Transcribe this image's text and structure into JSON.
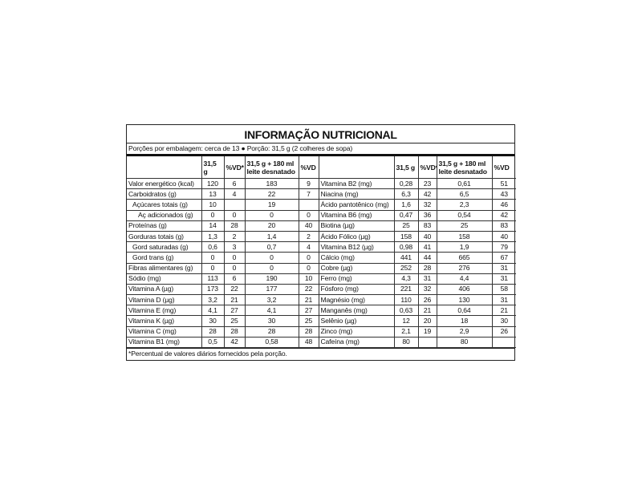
{
  "title": "INFORMAÇÃO NUTRICIONAL",
  "serving": "Porções por embalagem: cerca de 13 ● Porção: 31,5 g (2 colheres de sopa)",
  "left": {
    "columns": [
      "31,5 g",
      "%VD*",
      "31,5 g + 180 ml\nleite desnatado",
      "%VD"
    ],
    "rows": [
      [
        "Valor energético (kcal)",
        "120",
        "6",
        "183",
        "9"
      ],
      [
        "Carboidratos (g)",
        "13",
        "4",
        "22",
        "7"
      ],
      [
        "Açúcares totais (g)",
        "10",
        null,
        "19",
        null
      ],
      [
        "Aç adicionados (g)",
        "0",
        "0",
        "0",
        "0"
      ],
      [
        "Proteínas (g)",
        "14",
        "28",
        "20",
        "40"
      ],
      [
        "Gorduras totais (g)",
        "1,3",
        "2",
        "1,4",
        "2"
      ],
      [
        "Gord saturadas (g)",
        "0,6",
        "3",
        "0,7",
        "4"
      ],
      [
        "Gord trans (g)",
        "0",
        "0",
        "0",
        "0"
      ],
      [
        "Fibras alimentares (g)",
        "0",
        "0",
        "0",
        "0"
      ],
      [
        "Sódio (mg)",
        "113",
        "6",
        "190",
        "10"
      ],
      [
        "Vitamina A (µg)",
        "173",
        "22",
        "177",
        "22"
      ],
      [
        "Vitamina D (µg)",
        "3,2",
        "21",
        "3,2",
        "21"
      ],
      [
        "Vitamina E (mg)",
        "4,1",
        "27",
        "4,1",
        "27"
      ],
      [
        "Vitamina K (µg)",
        "30",
        "25",
        "30",
        "25"
      ],
      [
        "Vitamina C (mg)",
        "28",
        "28",
        "28",
        "28"
      ],
      [
        "Vitamina B1 (mg)",
        "0,5",
        "42",
        "0,58",
        "48"
      ]
    ]
  },
  "right": {
    "columns": [
      "31,5 g",
      "%VD*",
      "31,5 g + 180 ml\nleite desnatado",
      "%VD"
    ],
    "rows": [
      [
        "Vitamina B2 (mg)",
        "0,28",
        "23",
        "0,61",
        "51"
      ],
      [
        "Niacina (mg)",
        "6,3",
        "42",
        "6,5",
        "43"
      ],
      [
        "Ácido pantotênico (mg)",
        "1,6",
        "32",
        "2,3",
        "46"
      ],
      [
        "Vitamina B6 (mg)",
        "0,47",
        "36",
        "0,54",
        "42"
      ],
      [
        "Biotina (µg)",
        "25",
        "83",
        "25",
        "83"
      ],
      [
        "Ácido Fólico (µg)",
        "158",
        "40",
        "158",
        "40"
      ],
      [
        "Vitamina B12 (µg)",
        "0,98",
        "41",
        "1,9",
        "79"
      ],
      [
        "Cálcio (mg)",
        "441",
        "44",
        "665",
        "67"
      ],
      [
        "Cobre (µg)",
        "252",
        "28",
        "276",
        "31"
      ],
      [
        "Ferro (mg)",
        "4,3",
        "31",
        "4,4",
        "31"
      ],
      [
        "Fósforo (mg)",
        "221",
        "32",
        "406",
        "58"
      ],
      [
        "Magnésio (mg)",
        "110",
        "26",
        "130",
        "31"
      ],
      [
        "Manganês (mg)",
        "0,63",
        "21",
        "0,64",
        "21"
      ],
      [
        "Selênio (µg)",
        "12",
        "20",
        "18",
        "30"
      ],
      [
        "Zinco (mg)",
        "2,1",
        "19",
        "2,9",
        "26"
      ],
      [
        "Cafeína (mg)",
        "80",
        null,
        "80",
        null
      ]
    ]
  },
  "footnote": "*Percentual de valores diários fornecidos pela porção."
}
